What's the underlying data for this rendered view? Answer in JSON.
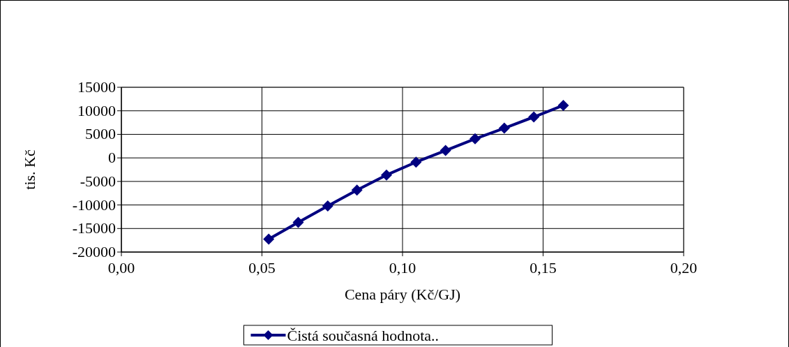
{
  "chart_data": {
    "type": "line",
    "xlabel": "Cena páry (Kč/GJ)",
    "ylabel": "tis. Kč",
    "x": [
      0.0524,
      0.0629,
      0.0734,
      0.0838,
      0.0943,
      0.1048,
      0.1153,
      0.1258,
      0.1362,
      0.1467,
      0.1572
    ],
    "series": [
      {
        "name": "Čistá současná hodnota..",
        "color": "#000080",
        "values": [
          -17260,
          -13690,
          -10220,
          -6840,
          -3640,
          -900,
          1570,
          4060,
          6320,
          8690,
          11160
        ]
      }
    ],
    "xlim": [
      0,
      0.2
    ],
    "xticks": [
      {
        "value": 0,
        "label": "0,00"
      },
      {
        "value": 0.05,
        "label": "0,05"
      },
      {
        "value": 0.1,
        "label": "0,10"
      },
      {
        "value": 0.15,
        "label": "0,15"
      },
      {
        "value": 0.2,
        "label": "0,20"
      }
    ],
    "ylim": [
      -20000,
      15000
    ],
    "yticks": [
      -20000,
      -15000,
      -10000,
      -5000,
      0,
      5000,
      10000,
      15000
    ],
    "grid": true,
    "legend": "bottom",
    "marker": "diamond",
    "line_style": "solid"
  }
}
